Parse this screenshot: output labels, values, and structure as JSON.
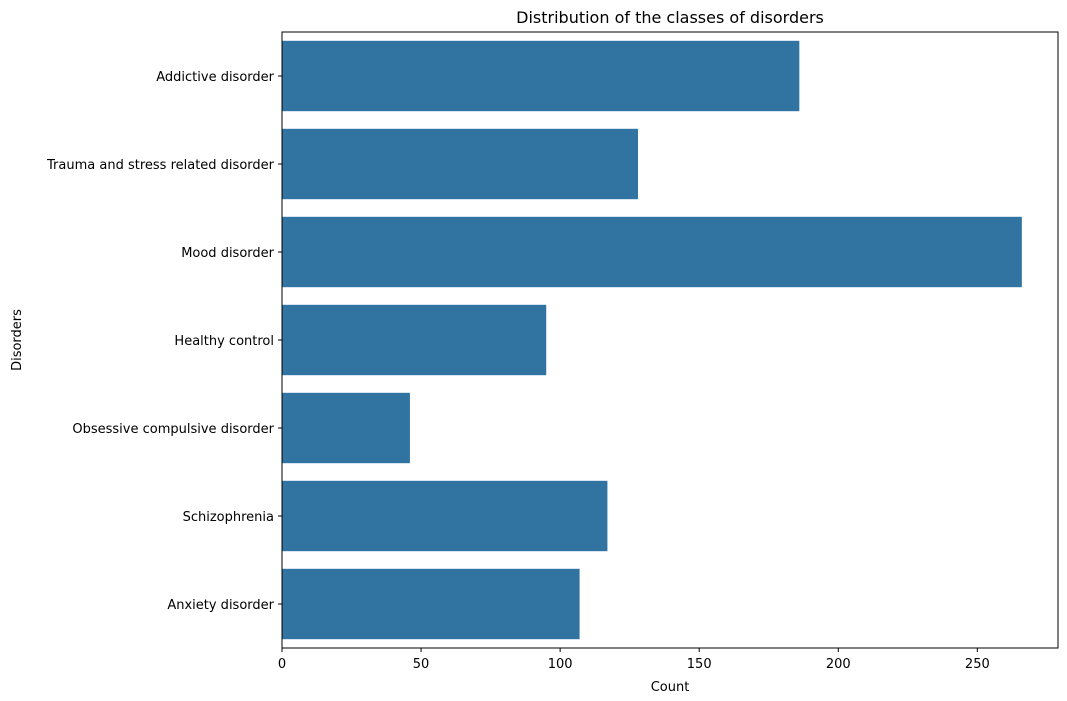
{
  "chart_data": {
    "type": "bar",
    "orientation": "horizontal",
    "title": "Distribution of the classes of disorders",
    "xlabel": "Count",
    "ylabel": "Disorders",
    "categories": [
      "Addictive disorder",
      "Trauma and stress related disorder",
      "Mood disorder",
      "Healthy control",
      "Obsessive compulsive disorder",
      "Schizophrenia",
      "Anxiety disorder"
    ],
    "values": [
      186,
      128,
      266,
      95,
      46,
      117,
      107
    ],
    "xlim": [
      0,
      279
    ],
    "xticks": [
      0,
      50,
      100,
      150,
      200,
      250
    ],
    "grid": false,
    "bar_color": "#3274a1"
  }
}
